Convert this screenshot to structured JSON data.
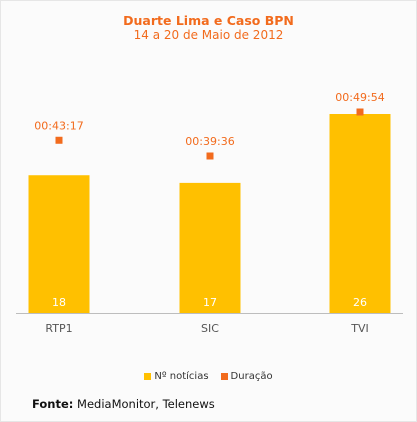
{
  "chart_data": {
    "type": "bar",
    "title": "Duarte Lima e Caso BPN",
    "subtitle": "14 a 20 de Maio de 2012",
    "categories": [
      "RTP1",
      "SIC",
      "TVI"
    ],
    "series": [
      {
        "name": "Nº notícias",
        "values": [
          18,
          17,
          26
        ],
        "color": "#ffc000",
        "kind": "bar"
      },
      {
        "name": "Duração",
        "values": [
          "00:43:17",
          "00:39:36",
          "00:49:54"
        ],
        "color": "#f26b1d",
        "kind": "marker"
      }
    ],
    "legend_position": "bottom",
    "grid": false
  },
  "source": {
    "label": "Fonte:",
    "text": " MediaMonitor, Telenews"
  }
}
